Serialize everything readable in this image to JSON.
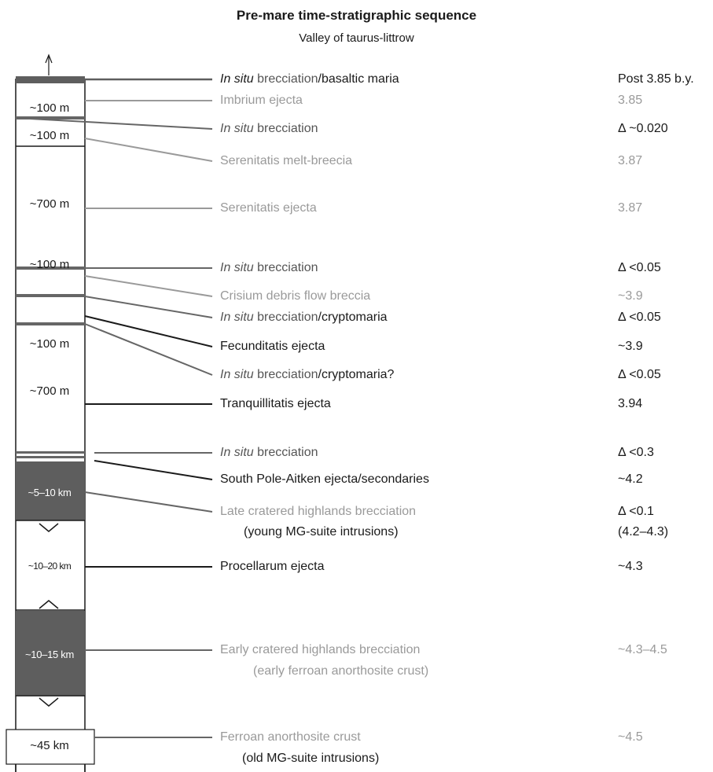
{
  "title": "Pre-mare time-stratigraphic sequence",
  "subtitle": "Valley of taurus-littrow",
  "column": {
    "thicknesses": [
      "~100 m",
      "~100 m",
      "~700 m",
      "~100 m",
      "~100 m",
      "~700 m",
      "~5–10 km",
      "~10–20 km",
      "~10–15 km",
      "~45 km"
    ]
  },
  "events": [
    {
      "italic": "In situ",
      "text": " brecciation",
      "text2": "/basaltic maria",
      "age": "Post 3.85 b.y."
    },
    {
      "italic": "",
      "text": "Imbrium ejecta",
      "text2": "",
      "age": "3.85"
    },
    {
      "italic": "In situ",
      "text": " brecciation",
      "text2": "",
      "age": "Δ ~0.020"
    },
    {
      "italic": "",
      "text": "Serenitatis melt-breecia",
      "text2": "",
      "age": "3.87"
    },
    {
      "italic": "",
      "text": "Serenitatis ejecta",
      "text2": "",
      "age": "3.87"
    },
    {
      "italic": "In situ",
      "text": " brecciation",
      "text2": "",
      "age": "Δ <0.05"
    },
    {
      "italic": "",
      "text": "Crisium debris flow breccia",
      "text2": "",
      "age": "~3.9"
    },
    {
      "italic": "In situ",
      "text": " brecciation",
      "text2": "/cryptomaria",
      "age": "Δ <0.05"
    },
    {
      "italic": "",
      "text": "Fecunditatis ejecta",
      "text2": "",
      "age": "~3.9"
    },
    {
      "italic": "In situ",
      "text": " brecciation",
      "text2": "/cryptomaria?",
      "age": "Δ <0.05"
    },
    {
      "italic": "",
      "text": "Tranquillitatis ejecta",
      "text2": "",
      "age": "3.94"
    },
    {
      "italic": "In situ",
      "text": " brecciation",
      "text2": "",
      "age": "Δ <0.3"
    },
    {
      "italic": "",
      "text": "South Pole-Aitken ejecta/secondaries",
      "text2": "",
      "age": "~4.2"
    },
    {
      "italic": "",
      "text": "Late cratered highlands brecciation",
      "text2": "",
      "age": "Δ <0.1"
    },
    {
      "italic": "",
      "text": "Procellarum ejecta",
      "text2": "",
      "age": "~4.3"
    },
    {
      "italic": "",
      "text": "Early cratered highlands brecciation",
      "text2": "",
      "age": "~4.3–4.5"
    },
    {
      "italic": "",
      "text": "Ferroan anorthosite crust",
      "text2": "",
      "age": "~4.5"
    }
  ],
  "sublines": {
    "late": "(young MG-suite intrusions)",
    "late_age": "(4.2–4.3)",
    "early": "(early ferroan anorthosite crust)",
    "fan": "(old MG-suite intrusions)"
  },
  "colors": {
    "dark": "#1a1a1a",
    "mid": "#666666",
    "light": "#9a9a9a",
    "fill": "#5e5e5e"
  }
}
